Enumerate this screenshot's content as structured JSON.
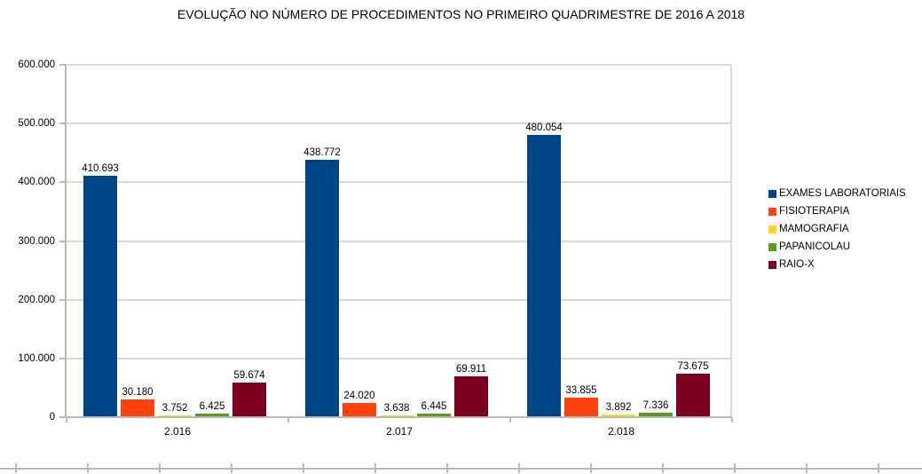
{
  "title": "EVOLUÇÃO NO NÚMERO DE PROCEDIMENTOS NO PRIMEIRO QUADRIMESTRE DE 2016 A 2018",
  "chart_data": {
    "type": "bar",
    "title": "EVOLUÇÃO NO NÚMERO DE PROCEDIMENTOS NO PRIMEIRO QUADRIMESTRE DE 2016 A 2018",
    "categories": [
      "2.016",
      "2.017",
      "2.018"
    ],
    "series": [
      {
        "name": "EXAMES LABORATORIAIS",
        "color": "#004586",
        "values": [
          410693,
          438772,
          480054
        ],
        "labels": [
          "410.693",
          "438.772",
          "480.054"
        ]
      },
      {
        "name": "FISIOTERAPIA",
        "color": "#FF420E",
        "values": [
          30180,
          24020,
          33855
        ],
        "labels": [
          "30.180",
          "24.020",
          "33.855"
        ]
      },
      {
        "name": "MAMOGRAFIA",
        "color": "#FFD320",
        "values": [
          3752,
          3638,
          3892
        ],
        "labels": [
          "3.752",
          "3.638",
          "3.892"
        ]
      },
      {
        "name": "PAPANICOLAU",
        "color": "#579D1C",
        "values": [
          6425,
          6445,
          7336
        ],
        "labels": [
          "6.425",
          "6.445",
          "7.336"
        ]
      },
      {
        "name": "RAIO-X",
        "color": "#7E0021",
        "values": [
          59674,
          69911,
          73675
        ],
        "labels": [
          "59.674",
          "69.911",
          "73.675"
        ]
      }
    ],
    "xlabel": "",
    "ylabel": "",
    "ylim": [
      0,
      600000
    ],
    "ytick_interval": 100000,
    "ytick_labels": [
      "0",
      "100.000",
      "200.000",
      "300.000",
      "400.000",
      "500.000",
      "600.000"
    ],
    "grid": true,
    "legend_position": "right",
    "data_labels": true
  }
}
